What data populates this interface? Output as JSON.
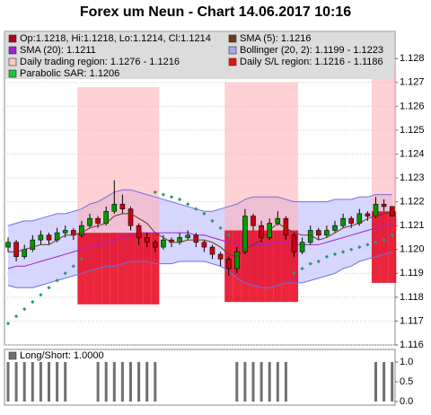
{
  "chart_data": [
    {
      "type": "candlestick",
      "title": "Forex um Neun - Chart 14.06.2017 10:16",
      "legend": [
        {
          "label": "Op:1.1218, Hi:1.1218, Lo:1.1214, Cl:1.1214",
          "color": "#b00018"
        },
        {
          "label": "SMA (5): 1.1216",
          "color": "#6b3a1a"
        },
        {
          "label": "SMA (20): 1.1211",
          "color": "#a020d0"
        },
        {
          "label": "Bollinger (20, 2): 1.1199 - 1.1223",
          "color": "#a8a8f0"
        },
        {
          "label": "Daily trading region: 1.1276 - 1.1216",
          "color": "#ffc8c8"
        },
        {
          "label": "Daily S/L region: 1.1216 - 1.1186",
          "color": "#ee1010"
        },
        {
          "label": "Parabolic SAR: 1.1206",
          "color": "#20c040"
        }
      ],
      "ohlc": [
        [
          1.1201,
          1.1205,
          1.1199,
          1.1203
        ],
        [
          1.1203,
          1.1204,
          1.1195,
          1.1197
        ],
        [
          1.1197,
          1.1202,
          1.1196,
          1.12
        ],
        [
          1.12,
          1.1206,
          1.1199,
          1.1204
        ],
        [
          1.1204,
          1.1208,
          1.1202,
          1.1206
        ],
        [
          1.1206,
          1.1207,
          1.1202,
          1.1204
        ],
        [
          1.1204,
          1.1209,
          1.1203,
          1.1207
        ],
        [
          1.1207,
          1.121,
          1.1205,
          1.1208
        ],
        [
          1.1208,
          1.1209,
          1.1204,
          1.1206
        ],
        [
          1.1206,
          1.1212,
          1.1205,
          1.121
        ],
        [
          1.121,
          1.1215,
          1.1209,
          1.1213
        ],
        [
          1.1213,
          1.1214,
          1.1209,
          1.1211
        ],
        [
          1.1211,
          1.1218,
          1.121,
          1.1216
        ],
        [
          1.1216,
          1.1229,
          1.1215,
          1.1219
        ],
        [
          1.1219,
          1.1223,
          1.1215,
          1.1217
        ],
        [
          1.1217,
          1.1218,
          1.1208,
          1.121
        ],
        [
          1.121,
          1.1211,
          1.1202,
          1.1205
        ],
        [
          1.1205,
          1.1207,
          1.1201,
          1.1203
        ],
        [
          1.1203,
          1.1204,
          1.1199,
          1.1201
        ],
        [
          1.1201,
          1.1206,
          1.12,
          1.1204
        ],
        [
          1.1204,
          1.1205,
          1.1201,
          1.1203
        ],
        [
          1.1203,
          1.1207,
          1.1202,
          1.1205
        ],
        [
          1.1205,
          1.1208,
          1.1204,
          1.1206
        ],
        [
          1.1206,
          1.1207,
          1.1201,
          1.1203
        ],
        [
          1.1203,
          1.1204,
          1.1199,
          1.1201
        ],
        [
          1.1201,
          1.1202,
          1.1196,
          1.1198
        ],
        [
          1.1198,
          1.1199,
          1.1193,
          1.1196
        ],
        [
          1.1196,
          1.1197,
          1.1189,
          1.1192
        ],
        [
          1.1192,
          1.1201,
          1.119,
          1.1199
        ],
        [
          1.1199,
          1.1217,
          1.1198,
          1.1214
        ],
        [
          1.1214,
          1.1215,
          1.1208,
          1.121
        ],
        [
          1.121,
          1.1212,
          1.1203,
          1.1205
        ],
        [
          1.1205,
          1.1213,
          1.1204,
          1.1211
        ],
        [
          1.1211,
          1.1216,
          1.121,
          1.1213
        ],
        [
          1.1213,
          1.1214,
          1.1204,
          1.1206
        ],
        [
          1.1206,
          1.1207,
          1.1197,
          1.1199
        ],
        [
          1.1199,
          1.1205,
          1.1198,
          1.1203
        ],
        [
          1.1203,
          1.121,
          1.1202,
          1.1208
        ],
        [
          1.1208,
          1.1209,
          1.1204,
          1.1206
        ],
        [
          1.1206,
          1.121,
          1.1205,
          1.1208
        ],
        [
          1.1208,
          1.1212,
          1.1207,
          1.121
        ],
        [
          1.121,
          1.1215,
          1.1209,
          1.1213
        ],
        [
          1.1213,
          1.1214,
          1.1209,
          1.1211
        ],
        [
          1.1211,
          1.1217,
          1.121,
          1.1215
        ],
        [
          1.1215,
          1.1216,
          1.1212,
          1.1214
        ],
        [
          1.1214,
          1.1222,
          1.1213,
          1.1219
        ],
        [
          1.1219,
          1.1221,
          1.1216,
          1.1218
        ],
        [
          1.1218,
          1.1218,
          1.1214,
          1.1214
        ]
      ],
      "sma5": [
        1.1199,
        1.1199,
        1.12,
        1.1201,
        1.1202,
        1.1202,
        1.1204,
        1.1206,
        1.1206,
        1.1207,
        1.1209,
        1.121,
        1.1211,
        1.1214,
        1.1215,
        1.1215,
        1.1213,
        1.1211,
        1.1207,
        1.1205,
        1.1203,
        1.1203,
        1.1204,
        1.1204,
        1.1204,
        1.1203,
        1.1201,
        1.1198,
        1.1197,
        1.12,
        1.1202,
        1.1204,
        1.1208,
        1.1211,
        1.1209,
        1.1207,
        1.1206,
        1.1206,
        1.1204,
        1.1205,
        1.1207,
        1.1209,
        1.121,
        1.1211,
        1.1213,
        1.1214,
        1.1215,
        1.1216
      ],
      "sma20": [
        1.1192,
        1.1193,
        1.1193,
        1.1194,
        1.1195,
        1.1196,
        1.1197,
        1.1198,
        1.1199,
        1.12,
        1.1201,
        1.1202,
        1.1203,
        1.1204,
        1.1205,
        1.1206,
        1.1207,
        1.1207,
        1.1207,
        1.1207,
        1.1207,
        1.1207,
        1.1207,
        1.1206,
        1.1206,
        1.1205,
        1.1204,
        1.1203,
        1.1202,
        1.1202,
        1.1202,
        1.1202,
        1.1202,
        1.1203,
        1.1203,
        1.1202,
        1.1202,
        1.1202,
        1.1202,
        1.1203,
        1.1204,
        1.1205,
        1.1206,
        1.1207,
        1.1208,
        1.1209,
        1.121,
        1.1211
      ],
      "bollinger_upper": [
        1.121,
        1.1211,
        1.1212,
        1.1212,
        1.1213,
        1.1214,
        1.1215,
        1.1215,
        1.1216,
        1.1217,
        1.1219,
        1.122,
        1.1222,
        1.1224,
        1.1225,
        1.1225,
        1.1224,
        1.1223,
        1.1222,
        1.1221,
        1.122,
        1.1219,
        1.1218,
        1.1217,
        1.1216,
        1.1216,
        1.1217,
        1.1218,
        1.1219,
        1.1221,
        1.1222,
        1.1222,
        1.1222,
        1.1222,
        1.1221,
        1.122,
        1.122,
        1.122,
        1.122,
        1.122,
        1.1221,
        1.1221,
        1.1221,
        1.1222,
        1.1222,
        1.1223,
        1.1223,
        1.1223
      ],
      "bollinger_lower": [
        1.1185,
        1.1184,
        1.1184,
        1.1184,
        1.1185,
        1.1186,
        1.1187,
        1.1188,
        1.1189,
        1.119,
        1.1191,
        1.1192,
        1.1193,
        1.1193,
        1.1194,
        1.1195,
        1.1195,
        1.1195,
        1.1194,
        1.1194,
        1.1194,
        1.1195,
        1.1195,
        1.1195,
        1.1195,
        1.1194,
        1.1193,
        1.1191,
        1.1188,
        1.1186,
        1.1185,
        1.1184,
        1.1184,
        1.1185,
        1.1186,
        1.1186,
        1.1186,
        1.1187,
        1.1188,
        1.1189,
        1.119,
        1.1192,
        1.1193,
        1.1195,
        1.1196,
        1.1197,
        1.1198,
        1.1199
      ],
      "sar": [
        1.1169,
        1.1172,
        1.1175,
        1.1178,
        1.1181,
        1.1184,
        1.1187,
        1.119,
        1.1193,
        1.1196,
        null,
        null,
        null,
        null,
        null,
        null,
        null,
        null,
        1.1224,
        1.1223,
        1.1222,
        1.1221,
        1.1219,
        1.1217,
        1.1215,
        1.1212,
        1.1209,
        1.1206,
        null,
        null,
        null,
        null,
        null,
        null,
        null,
        1.119,
        1.1192,
        1.1194,
        1.1195,
        1.1197,
        1.1198,
        1.1199,
        1.12,
        1.1201,
        1.1202,
        1.1203,
        1.1204,
        1.1206
      ],
      "trading_high": [
        null,
        null,
        null,
        null,
        null,
        null,
        null,
        null,
        null,
        1.1268,
        1.1268,
        1.1268,
        1.1268,
        1.1268,
        1.1268,
        1.1268,
        1.1268,
        1.1268,
        1.1268,
        null,
        null,
        null,
        null,
        null,
        null,
        null,
        null,
        1.127,
        1.127,
        1.127,
        1.127,
        1.127,
        1.127,
        1.127,
        1.127,
        1.127,
        null,
        null,
        null,
        null,
        null,
        null,
        null,
        null,
        null,
        1.1276,
        1.1276,
        1.1276
      ],
      "trading_low": [
        null,
        null,
        null,
        null,
        null,
        null,
        null,
        null,
        null,
        1.1207,
        1.1207,
        1.1207,
        1.1207,
        1.1207,
        1.1207,
        1.1207,
        1.1207,
        1.1207,
        1.1207,
        null,
        null,
        null,
        null,
        null,
        null,
        null,
        null,
        1.1208,
        1.1208,
        1.1208,
        1.1208,
        1.1208,
        1.1208,
        1.1208,
        1.1208,
        1.1208,
        null,
        null,
        null,
        null,
        null,
        null,
        null,
        null,
        null,
        1.1216,
        1.1216,
        1.1216
      ],
      "sl_low": [
        null,
        null,
        null,
        null,
        null,
        null,
        null,
        null,
        null,
        1.1177,
        1.1177,
        1.1177,
        1.1177,
        1.1177,
        1.1177,
        1.1177,
        1.1177,
        1.1177,
        1.1177,
        null,
        null,
        null,
        null,
        null,
        null,
        null,
        null,
        1.1178,
        1.1178,
        1.1178,
        1.1178,
        1.1178,
        1.1178,
        1.1178,
        1.1178,
        1.1178,
        null,
        null,
        null,
        null,
        null,
        null,
        null,
        null,
        null,
        1.1186,
        1.1186,
        1.1186
      ],
      "ylim": [
        1.116,
        1.1291
      ],
      "yticks": [
        1.116,
        1.117,
        1.118,
        1.119,
        {
          "value": 1.12,
          "label": "1.120"
        },
        1.121,
        1.122,
        1.123,
        1.124,
        1.125,
        1.126,
        1.127,
        1.128
      ],
      "grid": true
    },
    {
      "type": "bar",
      "title": "Long/Short: 1.0000",
      "color": "#707070",
      "values": [
        1,
        1,
        1,
        1,
        1,
        1,
        1,
        1,
        0,
        0,
        0,
        1,
        1,
        1,
        1,
        1,
        1,
        1,
        1,
        0,
        0,
        0,
        0,
        0,
        0,
        0,
        0,
        0,
        1,
        1,
        1,
        1,
        1,
        1,
        1,
        0,
        0,
        0,
        0,
        0,
        0,
        0,
        0,
        0,
        0,
        1,
        1,
        1
      ],
      "ylim": [
        0,
        1
      ],
      "yticks": [
        {
          "value": 0,
          "label": "0.0"
        },
        0.5,
        {
          "value": 1,
          "label": "1.0"
        }
      ]
    }
  ]
}
